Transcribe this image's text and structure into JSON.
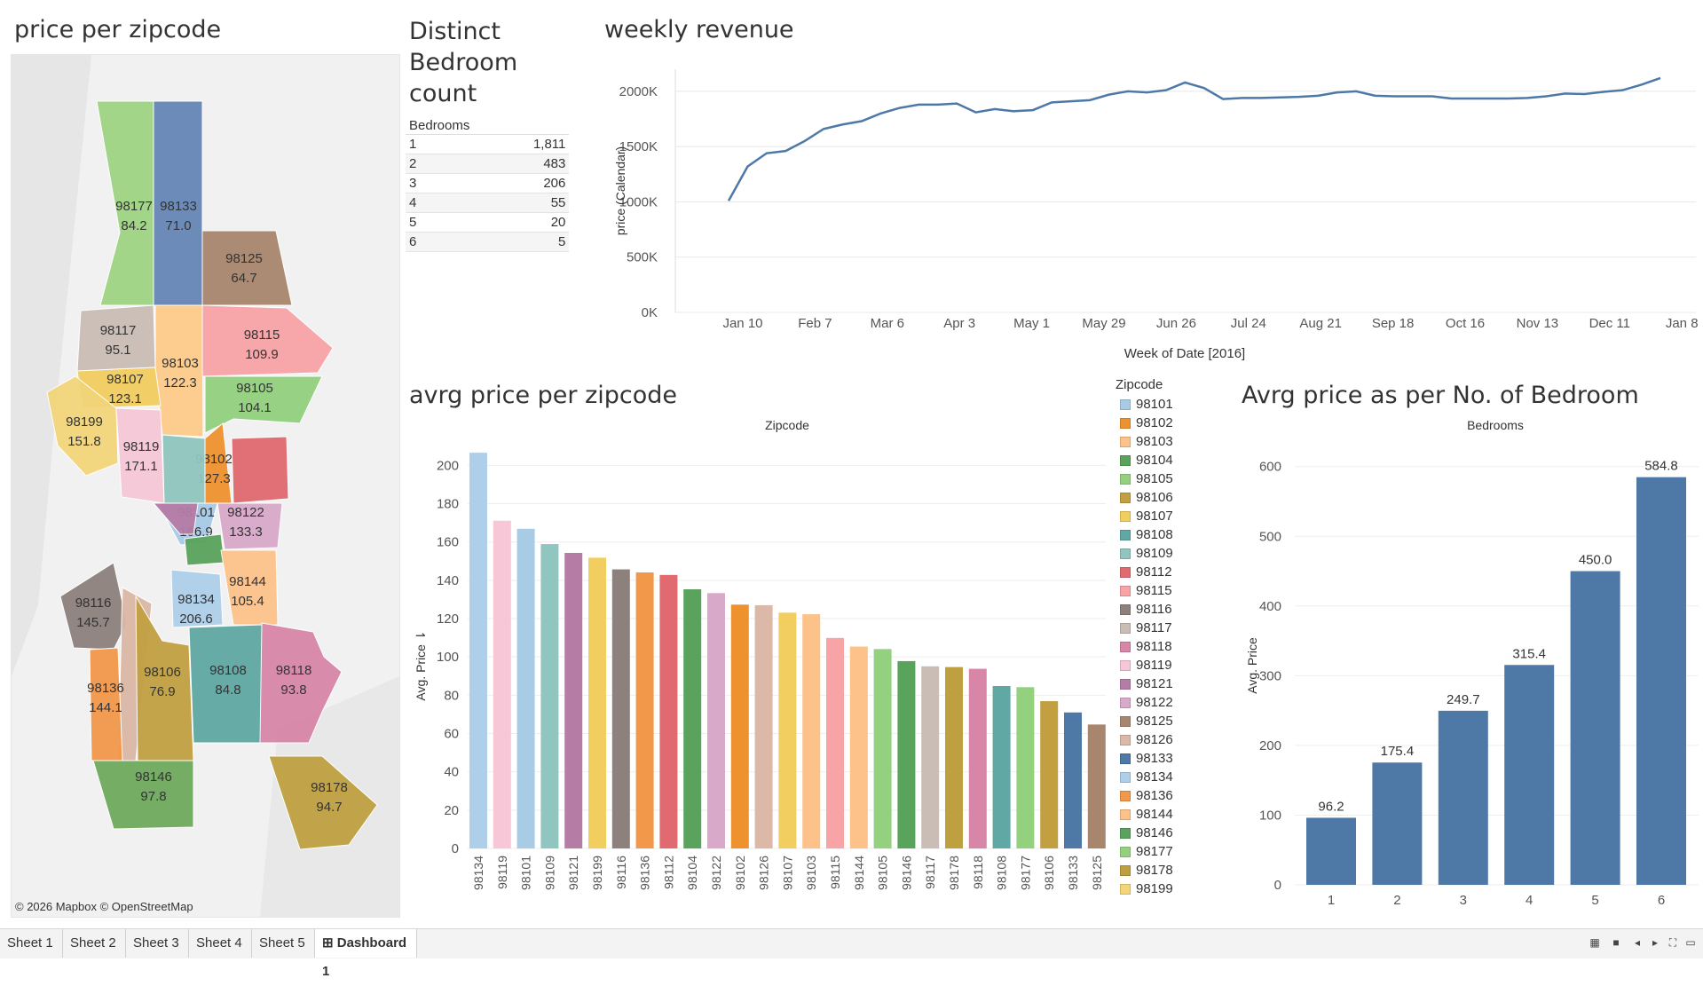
{
  "titles": {
    "map": "price per zipcode",
    "bed_count": "Distinct Bedroom count",
    "weekly": "weekly revenue",
    "avg_zip": "avrg price per zipcode",
    "avg_bed": "Avrg price as per No. of Bedroom"
  },
  "map": {
    "credit": "© 2026 Mapbox © OpenStreetMap",
    "regions": [
      {
        "zip": "98177",
        "value": "84.2",
        "color": "#9fd483"
      },
      {
        "zip": "98133",
        "value": "71.0",
        "color": "#6586b5"
      },
      {
        "zip": "98125",
        "value": "64.7",
        "color": "#a8866d"
      },
      {
        "zip": "98117",
        "value": "95.1",
        "color": "#c9bdb6"
      },
      {
        "zip": "98103",
        "value": "122.3",
        "color": "#fdcc8a"
      },
      {
        "zip": "98115",
        "value": "109.9",
        "color": "#f8a3a6"
      },
      {
        "zip": "98107",
        "value": "123.1",
        "color": "#f2cd5f"
      },
      {
        "zip": "98105",
        "value": "104.1",
        "color": "#93d17f"
      },
      {
        "zip": "98199",
        "value": "151.8",
        "color": "#f3d57a"
      },
      {
        "zip": "98119",
        "value": "171.1",
        "color": "#f7c7d7"
      },
      {
        "zip": "98102",
        "value": "127.3",
        "color": "#ee922f"
      },
      {
        "zip": "98112",
        "value": "",
        "color": "#e06a6f"
      },
      {
        "zip": "98109",
        "value": "",
        "color": "#91c5bf"
      },
      {
        "zip": "98101",
        "value": "166.9",
        "color": "#a8cbe6"
      },
      {
        "zip": "98122",
        "value": "133.3",
        "color": "#d9a9ca"
      },
      {
        "zip": "98121",
        "value": "",
        "color": "#b57ca6"
      },
      {
        "zip": "98104",
        "value": "",
        "color": "#5aa35c"
      },
      {
        "zip": "98144",
        "value": "105.4",
        "color": "#fdc28a"
      },
      {
        "zip": "98116",
        "value": "145.7",
        "color": "#8c817c"
      },
      {
        "zip": "98126",
        "value": "",
        "color": "#dbb8a7"
      },
      {
        "zip": "98134",
        "value": "206.6",
        "color": "#aecfe9"
      },
      {
        "zip": "98136",
        "value": "144.1",
        "color": "#f2984a"
      },
      {
        "zip": "98106",
        "value": "76.9",
        "color": "#c2a042"
      },
      {
        "zip": "98108",
        "value": "84.8",
        "color": "#5fa8a3"
      },
      {
        "zip": "98118",
        "value": "93.8",
        "color": "#d886a8"
      },
      {
        "zip": "98146",
        "value": "97.8",
        "color": "#6faa5e"
      },
      {
        "zip": "98178",
        "value": "94.7",
        "color": "#bfa041"
      }
    ]
  },
  "bedrooms_table": {
    "header": "Bedrooms",
    "rows": [
      {
        "bedrooms": "1",
        "count": "1,811"
      },
      {
        "bedrooms": "2",
        "count": "483"
      },
      {
        "bedrooms": "3",
        "count": "206"
      },
      {
        "bedrooms": "4",
        "count": "55"
      },
      {
        "bedrooms": "5",
        "count": "20"
      },
      {
        "bedrooms": "6",
        "count": "5"
      }
    ]
  },
  "zip_legend": {
    "title": "Zipcode",
    "items": [
      {
        "zip": "98101",
        "color": "#a8cbe6"
      },
      {
        "zip": "98102",
        "color": "#ee922f"
      },
      {
        "zip": "98103",
        "color": "#fdc28a"
      },
      {
        "zip": "98104",
        "color": "#5aa35c"
      },
      {
        "zip": "98105",
        "color": "#93d17f"
      },
      {
        "zip": "98106",
        "color": "#c2a042"
      },
      {
        "zip": "98107",
        "color": "#f2cd5f"
      },
      {
        "zip": "98108",
        "color": "#5fa8a3"
      },
      {
        "zip": "98109",
        "color": "#91c5bf"
      },
      {
        "zip": "98112",
        "color": "#e06a6f"
      },
      {
        "zip": "98115",
        "color": "#f8a3a6"
      },
      {
        "zip": "98116",
        "color": "#8c817c"
      },
      {
        "zip": "98117",
        "color": "#c9bdb6"
      },
      {
        "zip": "98118",
        "color": "#d886a8"
      },
      {
        "zip": "98119",
        "color": "#f7c7d7"
      },
      {
        "zip": "98121",
        "color": "#b57ca6"
      },
      {
        "zip": "98122",
        "color": "#d9a9ca"
      },
      {
        "zip": "98125",
        "color": "#a8866d"
      },
      {
        "zip": "98126",
        "color": "#dbb8a7"
      },
      {
        "zip": "98133",
        "color": "#4e79a7"
      },
      {
        "zip": "98134",
        "color": "#aecfe9"
      },
      {
        "zip": "98136",
        "color": "#f2984a"
      },
      {
        "zip": "98144",
        "color": "#fdc28a"
      },
      {
        "zip": "98146",
        "color": "#5aa35c"
      },
      {
        "zip": "98177",
        "color": "#93d17f"
      },
      {
        "zip": "98178",
        "color": "#bfa041"
      },
      {
        "zip": "98199",
        "color": "#f3d57a"
      }
    ]
  },
  "chart_data": [
    {
      "type": "line",
      "title": "weekly revenue",
      "xlabel": "Week of Date [2016]",
      "ylabel": "price (Calendar)",
      "x_ticks": [
        "Jan 10",
        "Feb 7",
        "Mar 6",
        "Apr 3",
        "May 1",
        "May 29",
        "Jun 26",
        "Jul 24",
        "Aug 21",
        "Sep 18",
        "Oct 16",
        "Nov 13",
        "Dec 11",
        "Jan 8"
      ],
      "y_ticks": [
        "0K",
        "500K",
        "1000K",
        "1500K",
        "2000K"
      ],
      "ylim": [
        0,
        2200
      ],
      "series": [
        {
          "values": [
            1010,
            1320,
            1440,
            1460,
            1550,
            1660,
            1700,
            1730,
            1800,
            1850,
            1880,
            1880,
            1890,
            1810,
            1840,
            1820,
            1830,
            1900,
            1910,
            1920,
            1970,
            2000,
            1990,
            2010,
            2080,
            2030,
            1930,
            1940,
            1940,
            1945,
            1950,
            1960,
            1990,
            2000,
            1960,
            1955,
            1955,
            1955,
            1935,
            1935,
            1935,
            1935,
            1940,
            1955,
            1980,
            1975,
            1995,
            2010,
            2060,
            2120
          ]
        }
      ],
      "grid": true
    },
    {
      "type": "bar",
      "title": "avrg price per zipcode",
      "xlabel": "Zipcode",
      "ylabel": "Avg. Price",
      "categories": [
        "98134",
        "98119",
        "98101",
        "98109",
        "98121",
        "98199",
        "98116",
        "98136",
        "98112",
        "98104",
        "98122",
        "98102",
        "98126",
        "98107",
        "98103",
        "98115",
        "98144",
        "98105",
        "98146",
        "98117",
        "98178",
        "98118",
        "98108",
        "98177",
        "98106",
        "98133",
        "98125"
      ],
      "values": [
        206.6,
        171.1,
        166.9,
        158.9,
        154.3,
        151.8,
        145.7,
        144.1,
        142.8,
        135.3,
        133.3,
        127.3,
        127.0,
        123.1,
        122.3,
        109.9,
        105.4,
        104.1,
        97.8,
        95.1,
        94.7,
        93.8,
        84.8,
        84.2,
        76.9,
        71.0,
        64.7
      ],
      "colors": [
        "#aecfe9",
        "#f7c7d7",
        "#a8cbe6",
        "#91c5bf",
        "#b57ca6",
        "#f2cd5f",
        "#8c817c",
        "#f2984a",
        "#e06a6f",
        "#5aa35c",
        "#d9a9ca",
        "#ee922f",
        "#dbb8a7",
        "#f2cd5f",
        "#fdc28a",
        "#f8a3a6",
        "#fdc28a",
        "#93d17f",
        "#5aa35c",
        "#c9bdb6",
        "#bfa041",
        "#d886a8",
        "#5fa8a3",
        "#93d17f",
        "#c2a042",
        "#4e79a7",
        "#a8866d"
      ],
      "y_ticks": [
        "0",
        "20",
        "40",
        "60",
        "80",
        "100",
        "120",
        "140",
        "160",
        "180",
        "200"
      ],
      "ylim": [
        0,
        215
      ],
      "grid": true
    },
    {
      "type": "bar",
      "title": "Avrg price as per No. of Bedroom",
      "xlabel": "Bedrooms",
      "ylabel": "Avg. Price",
      "categories": [
        "1",
        "2",
        "3",
        "4",
        "5",
        "6"
      ],
      "values": [
        96.2,
        175.4,
        249.7,
        315.4,
        450.0,
        584.8
      ],
      "labels": [
        "96.2",
        "175.4",
        "249.7",
        "315.4",
        "450.0",
        "584.8"
      ],
      "color": "#4e79a7",
      "y_ticks": [
        "0",
        "100",
        "200",
        "300",
        "400",
        "500",
        "600"
      ],
      "ylim": [
        0,
        620
      ],
      "grid": true
    }
  ],
  "tabs": [
    {
      "label": "Sheet 1",
      "active": false
    },
    {
      "label": "Sheet 2",
      "active": false
    },
    {
      "label": "Sheet 3",
      "active": false
    },
    {
      "label": "Sheet 4",
      "active": false
    },
    {
      "label": "Sheet 5",
      "active": false
    },
    {
      "label": "⊞ Dashboard 1",
      "active": true
    }
  ]
}
